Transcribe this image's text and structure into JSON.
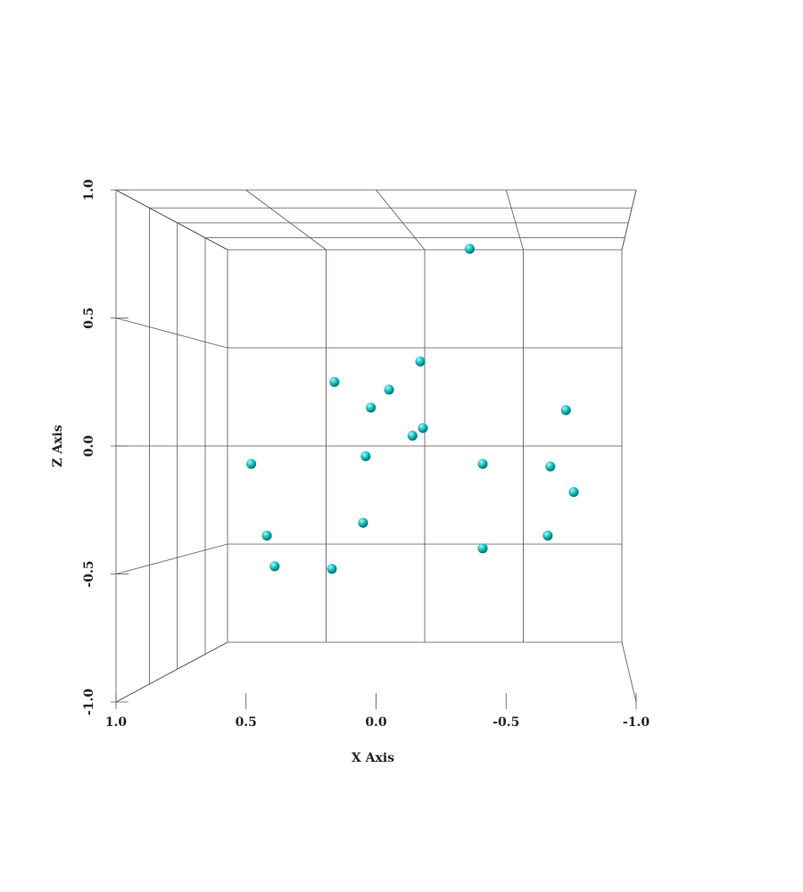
{
  "chart_data": {
    "type": "scatter3d",
    "x_label": "X Axis",
    "z_label": "Z Axis",
    "x": [
      -0.36,
      -0.17,
      0.16,
      -0.05,
      0.02,
      -0.73,
      -0.18,
      -0.14,
      0.04,
      0.48,
      -0.41,
      -0.67,
      -0.76,
      0.05,
      0.42,
      -0.66,
      -0.41,
      0.39,
      0.17
    ],
    "z": [
      0.77,
      0.33,
      0.25,
      0.22,
      0.15,
      0.14,
      0.07,
      0.04,
      -0.04,
      -0.07,
      -0.07,
      -0.08,
      -0.18,
      -0.3,
      -0.35,
      -0.35,
      -0.4,
      -0.47,
      -0.48
    ],
    "color": "#1fbfbf",
    "xlim": [
      1.0,
      -1.0
    ],
    "xticks": [
      {
        "value": 1.0,
        "label": "1.0"
      },
      {
        "value": 0.5,
        "label": "0.5"
      },
      {
        "value": 0.0,
        "label": "0.0"
      },
      {
        "value": -0.5,
        "label": "-0.5"
      },
      {
        "value": -1.0,
        "label": "-1.0"
      }
    ],
    "zlim": [
      -1.0,
      1.0
    ],
    "zticks": [
      {
        "value": 1.0,
        "label": "1.0"
      },
      {
        "value": 0.5,
        "label": "0.5"
      },
      {
        "value": 0.0,
        "label": "0.0"
      },
      {
        "value": -0.5,
        "label": "-0.5"
      },
      {
        "value": -1.0,
        "label": "-1.0"
      }
    ],
    "grid": true
  }
}
